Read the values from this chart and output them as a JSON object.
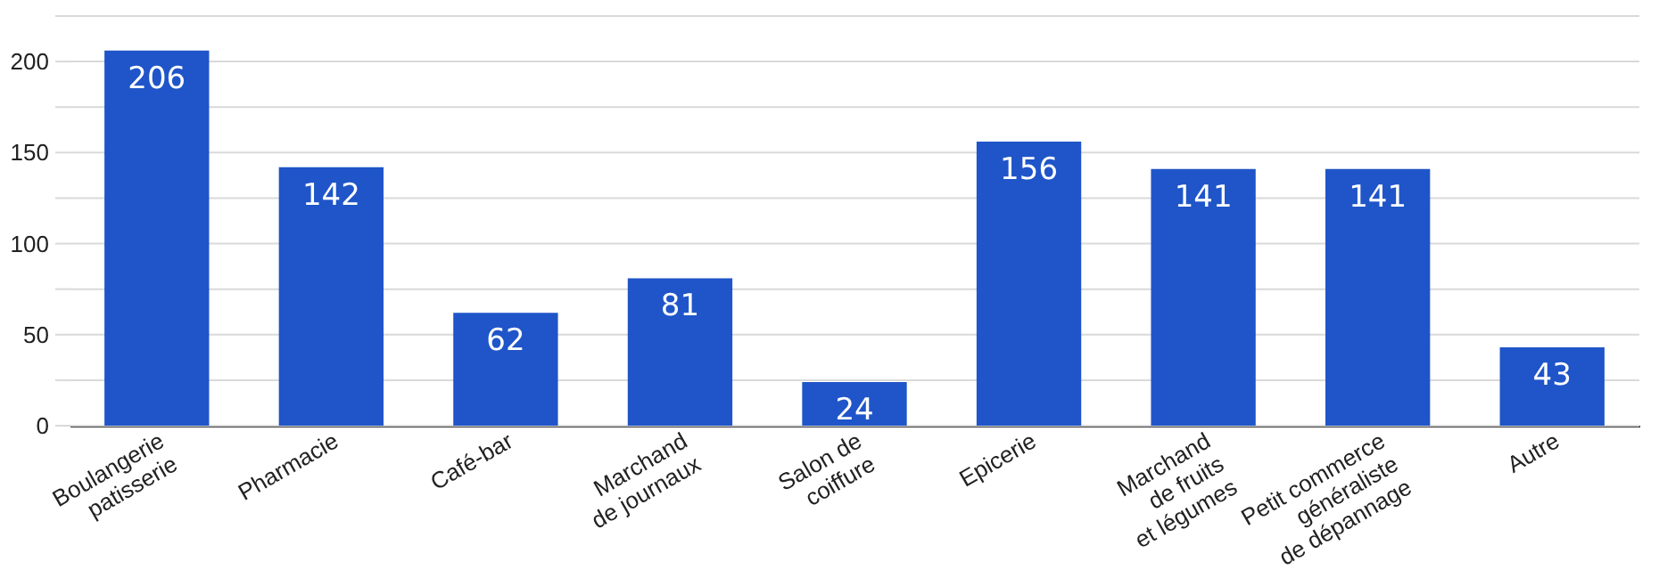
{
  "chart_data": {
    "type": "bar",
    "categories": [
      "Boulangerie\npatisserie",
      "Pharmacie",
      "Café-bar",
      "Marchand\nde journaux",
      "Salon de\ncoiffure",
      "Epicerie",
      "Marchand\nde fruits\net légumes",
      "Petit commerce\ngénéraliste\nde dépannage",
      "Autre"
    ],
    "values": [
      206,
      142,
      62,
      81,
      24,
      156,
      141,
      141,
      43
    ],
    "color": "#1f55c8",
    "ylim": [
      0,
      225
    ],
    "yticks": [
      0,
      {
        "value": 25,
        "label": null
      },
      50,
      {
        "value": 75,
        "label": null
      },
      100,
      {
        "value": 125,
        "label": null
      },
      150,
      {
        "value": 175,
        "label": null
      },
      200,
      {
        "value": 225,
        "label": null
      }
    ],
    "grid": true,
    "data_labels": true
  }
}
